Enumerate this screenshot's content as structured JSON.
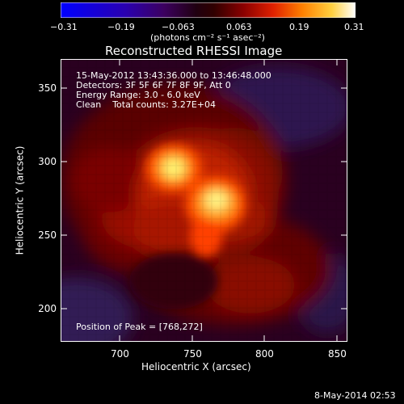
{
  "colorbar": {
    "ticks": [
      "−0.31",
      "−0.19",
      "−0.063",
      "0.063",
      "0.19",
      "0.31"
    ],
    "units": "(photons cm⁻² s⁻¹ asec⁻²)"
  },
  "title": "Reconstructed RHESSI Image",
  "info": {
    "time_range": "15-May-2012 13:43:36.000 to 13:46:48.000",
    "detectors": "Detectors: 3F 5F 6F 7F 8F 9F, Att 0",
    "energy": "Energy Range: 3.0 - 6.0 keV",
    "method": "Clean    Total counts: 3.27E+04"
  },
  "peak_text": "Position of Peak = [768,272]",
  "axes": {
    "xlabel": "Heliocentric X (arcsec)",
    "ylabel": "Heliocentric Y (arcsec)",
    "xticks": [
      "700",
      "750",
      "800",
      "850"
    ],
    "yticks": [
      "200",
      "250",
      "300",
      "350"
    ]
  },
  "footer_date": "8-May-2014 02:53"
}
